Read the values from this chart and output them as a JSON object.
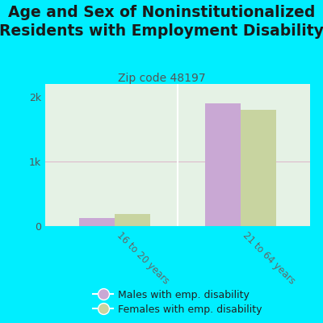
{
  "title": "Age and Sex of Noninstitutionalized\nResidents with Employment Disability",
  "subtitle": "Zip code 48197",
  "categories": [
    "16 to 20 years",
    "21 to 64 years"
  ],
  "males": [
    120,
    1900
  ],
  "females": [
    190,
    1800
  ],
  "male_color": "#c9a8d4",
  "female_color": "#c8d4a0",
  "background_color": "#00eeff",
  "plot_bg_color": "#ddeedd",
  "bar_width": 0.28,
  "ylim": [
    0,
    2200
  ],
  "yticks": [
    0,
    1000,
    2000
  ],
  "ytick_labels": [
    "0",
    "1k",
    "2k"
  ],
  "legend_male": "Males with emp. disability",
  "legend_female": "Females with emp. disability",
  "title_fontsize": 13.5,
  "subtitle_fontsize": 10,
  "grid_color": "#ddbbcc",
  "separator_color": "#cccccc"
}
